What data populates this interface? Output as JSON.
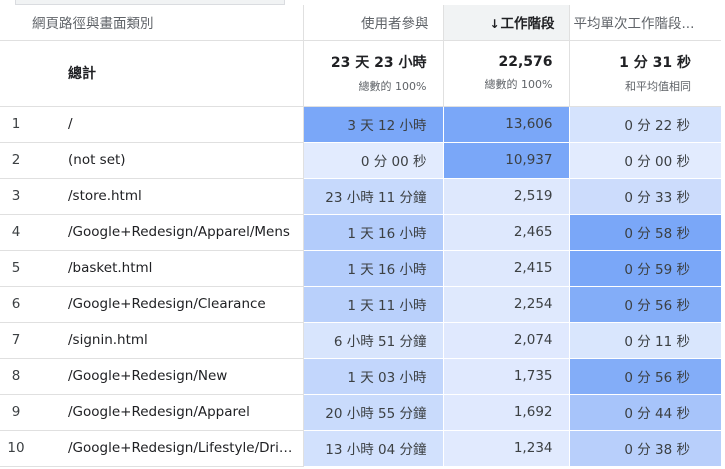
{
  "columns": {
    "page": "網頁路徑與畫面類別",
    "users": "使用者參與",
    "sessions": "工作階段",
    "avg": "平均單次工作階段..."
  },
  "sort_arrow": "↓",
  "totals": {
    "label": "總計",
    "users": "23 天 23 小時",
    "users_sub": "總數的 100%",
    "sessions": "22,576",
    "sessions_sub": "總數的 100%",
    "avg": "1 分 31 秒",
    "avg_sub": "和平均值相同"
  },
  "rows": [
    {
      "rank": "1",
      "path": "/",
      "users": "3 天 12 小時",
      "sessions": "13,606",
      "avg": "0 分 22 秒"
    },
    {
      "rank": "2",
      "path": "(not set)",
      "users": "0 分 00 秒",
      "sessions": "10,937",
      "avg": "0 分 00 秒"
    },
    {
      "rank": "3",
      "path": "/store.html",
      "users": "23 小時 11 分鐘",
      "sessions": "2,519",
      "avg": "0 分 33 秒"
    },
    {
      "rank": "4",
      "path": "/Google+Redesign/Apparel/Mens",
      "users": "1 天 16 小時",
      "sessions": "2,465",
      "avg": "0 分 58 秒"
    },
    {
      "rank": "5",
      "path": "/basket.html",
      "users": "1 天 16 小時",
      "sessions": "2,415",
      "avg": "0 分 59 秒"
    },
    {
      "rank": "6",
      "path": "/Google+Redesign/Clearance",
      "users": "1 天 11 小時",
      "sessions": "2,254",
      "avg": "0 分 56 秒"
    },
    {
      "rank": "7",
      "path": "/signin.html",
      "users": "6 小時 51 分鐘",
      "sessions": "2,074",
      "avg": "0 分 11 秒"
    },
    {
      "rank": "8",
      "path": "/Google+Redesign/New",
      "users": "1 天 03 小時",
      "sessions": "1,735",
      "avg": "0 分 56 秒"
    },
    {
      "rank": "9",
      "path": "/Google+Redesign/Apparel",
      "users": "20 小時 55 分鐘",
      "sessions": "1,692",
      "avg": "0 分 44 秒"
    },
    {
      "rank": "10",
      "path": "/Google+Redesign/Lifestyle/Drinkware",
      "users": "13 小時 04 分鐘",
      "sessions": "1,234",
      "avg": "0 分 38 秒"
    }
  ],
  "cell_colors": [
    {
      "users": "#7aa7f8",
      "sessions": "#7aa7f8",
      "avg": "#d5e3fd"
    },
    {
      "users": "#e2ebfe",
      "sessions": "#7aa7f8",
      "avg": "#e2ebfe"
    },
    {
      "users": "#c6d9fc",
      "sessions": "#dee8fd",
      "avg": "#ccdcfc"
    },
    {
      "users": "#b3ccfb",
      "sessions": "#dee8fd",
      "avg": "#7aa7f8"
    },
    {
      "users": "#b3ccfb",
      "sessions": "#dee8fd",
      "avg": "#7aa7f8"
    },
    {
      "users": "#b9d0fb",
      "sessions": "#dfe9fd",
      "avg": "#83adf8"
    },
    {
      "users": "#d8e5fd",
      "sessions": "#e0e9fe",
      "avg": "#d9e6fd"
    },
    {
      "users": "#c2d6fc",
      "sessions": "#e0e9fe",
      "avg": "#83adf8"
    },
    {
      "users": "#c9dbfc",
      "sessions": "#e0e9fe",
      "avg": "#a7c4fa"
    },
    {
      "users": "#d2e1fd",
      "sessions": "#e1eafe",
      "avg": "#b8cffb"
    }
  ]
}
